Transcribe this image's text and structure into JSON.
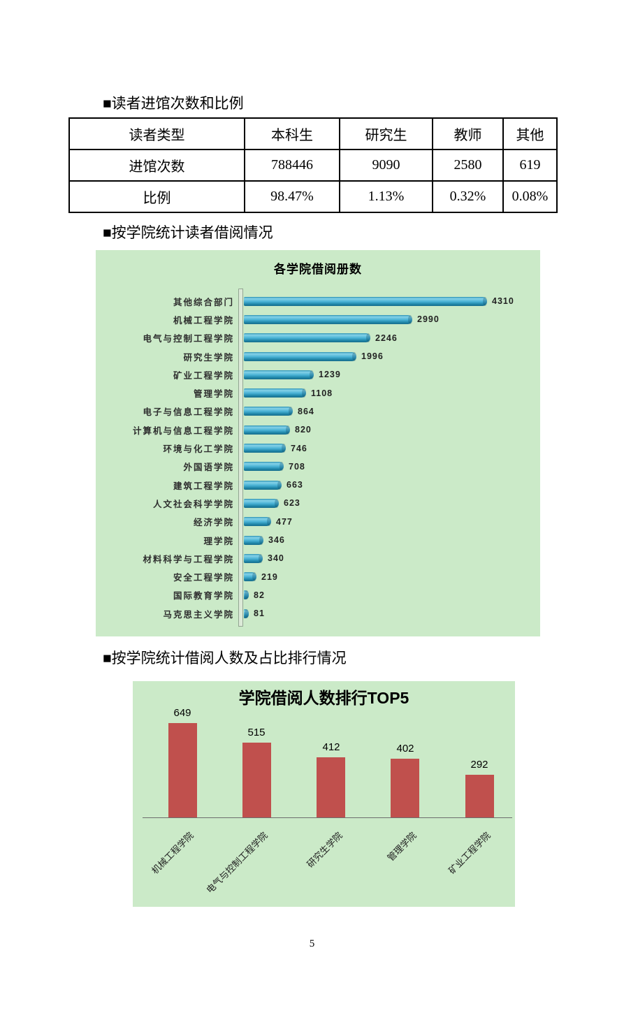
{
  "page": {
    "number": "5"
  },
  "sections": {
    "visits_heading": "■读者进馆次数和比例",
    "borrow_by_college_heading": "■按学院统计读者借阅情况",
    "top5_heading": "■按学院统计借阅人数及占比排行情况"
  },
  "visits_table": {
    "header": [
      "读者类型",
      "本科生",
      "研究生",
      "教师",
      "其他"
    ],
    "rows": [
      {
        "label": "进馆次数",
        "values": [
          "788446",
          "9090",
          "2580",
          "619"
        ]
      },
      {
        "label": "比例",
        "values": [
          "98.47%",
          "1.13%",
          "0.32%",
          "0.08%"
        ]
      }
    ]
  },
  "chart_data": [
    {
      "type": "bar",
      "orientation": "horizontal",
      "title": "各学院借阅册数",
      "categories": [
        "其他综合部门",
        "机械工程学院",
        "电气与控制工程学院",
        "研究生学院",
        "矿业工程学院",
        "管理学院",
        "电子与信息工程学院",
        "计算机与信息工程学院",
        "环境与化工学院",
        "外国语学院",
        "建筑工程学院",
        "人文社会科学学院",
        "经济学院",
        "理学院",
        "材料科学与工程学院",
        "安全工程学院",
        "国际教育学院",
        "马克思主义学院"
      ],
      "values": [
        4310,
        2990,
        2246,
        1996,
        1239,
        1108,
        864,
        820,
        746,
        708,
        663,
        623,
        477,
        346,
        340,
        219,
        82,
        81
      ],
      "xlim": [
        0,
        4500
      ],
      "data_labels": true,
      "grid": false,
      "legend": false,
      "bar_color": "#31a3cc",
      "background_color": "#cbeac8"
    },
    {
      "type": "bar",
      "orientation": "vertical",
      "title": "学院借阅人数排行TOP5",
      "categories": [
        "机械工程学院",
        "电气与控制工程学院",
        "研究生学院",
        "管理学院",
        "矿业工程学院"
      ],
      "values": [
        649,
        515,
        412,
        402,
        292
      ],
      "ylim": [
        0,
        700
      ],
      "data_labels": true,
      "grid": false,
      "legend": false,
      "bar_color": "#c0504d",
      "background_color": "#cbeac8"
    }
  ]
}
